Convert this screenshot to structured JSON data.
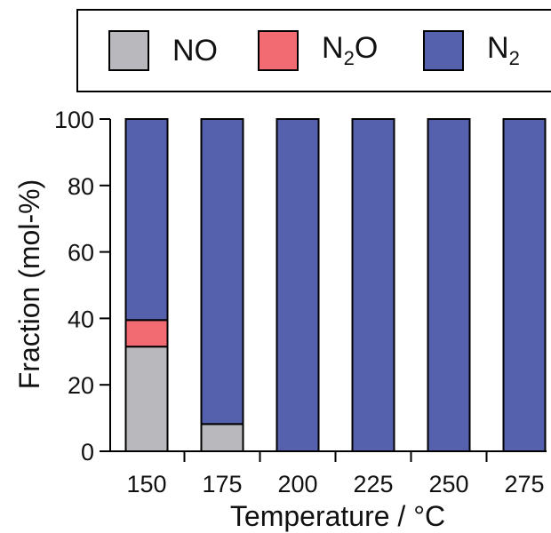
{
  "chart_data": {
    "type": "bar",
    "stacked": true,
    "categories": [
      "150",
      "175",
      "200",
      "225",
      "250",
      "275"
    ],
    "series": [
      {
        "name": "NO",
        "color": "#b9b9bd",
        "values": [
          31.5,
          8.2,
          0,
          0,
          0,
          0
        ]
      },
      {
        "name": "N2O",
        "color": "#f26a72",
        "values": [
          8.0,
          0,
          0,
          0,
          0,
          0
        ]
      },
      {
        "name": "N2",
        "color": "#5661ad",
        "values": [
          60.5,
          91.8,
          100,
          100,
          100,
          100
        ]
      }
    ],
    "xlabel": "Temperature / °C",
    "ylabel": "Fraction (mol-%)",
    "ylim": [
      0,
      100
    ],
    "yticks": [
      "0",
      "20",
      "40",
      "60",
      "80",
      "100"
    ],
    "legend_position": "top",
    "grid": false
  },
  "legend": {
    "items": [
      {
        "text": "NO",
        "sub": "",
        "suffix": ""
      },
      {
        "text": "N",
        "sub": "2",
        "suffix": "O"
      },
      {
        "text": "N",
        "sub": "2",
        "suffix": ""
      }
    ]
  }
}
